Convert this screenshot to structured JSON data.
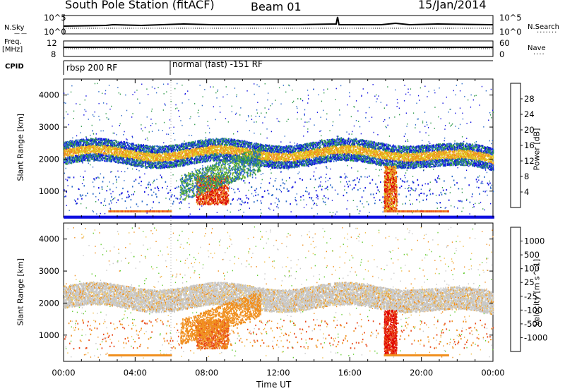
{
  "header": {
    "station": "South Pole Station (fitACF)",
    "beam": "Beam 01",
    "date": "15/Jan/2014"
  },
  "strips": {
    "nsky_label": "N.Sky",
    "nsearch_label": "N.Search",
    "freq_label": "Freq.",
    "freq_unit": "[MHz]",
    "nave_label": "Nave",
    "cpid_label": "CPID",
    "noise_axis": [
      "10^5",
      "10^0"
    ],
    "freq_axis": [
      "12",
      "8"
    ],
    "nave_axis": [
      "60",
      "0"
    ],
    "cpid_modes": [
      {
        "label": "rbsp 200 RF",
        "start_hour": 0
      },
      {
        "label": "normal (fast) -151 RF",
        "start_hour": 6
      }
    ]
  },
  "chart_data": [
    {
      "type": "heatmap",
      "title": "",
      "xlabel": "",
      "ylabel": "Slant Range [km]",
      "xlim": [
        0,
        24
      ],
      "ylim": [
        180,
        4500
      ],
      "yticks": [
        1000,
        2000,
        3000,
        4000
      ],
      "colorbar": {
        "label": "Power [dB]",
        "ticks": [
          "28",
          "24",
          "20",
          "16",
          "12",
          "8",
          "4"
        ],
        "colors": [
          "#1010e0",
          "#2868c8",
          "#2e9a4a",
          "#7ab830",
          "#e0cc20",
          "#f09020",
          "#e84818",
          "#d80000"
        ]
      },
      "regions": [
        {
          "x": [
            0.0,
            24.0
          ],
          "y": [
            1800,
            2500
          ],
          "level": "16-24 dB"
        },
        {
          "x": [
            0.0,
            24.0
          ],
          "y": [
            1450,
            1800
          ],
          "level": "4-12 dB"
        },
        {
          "x": [
            7.5,
            8.8
          ],
          "y": [
            600,
            1300
          ],
          "level": "24-28 dB"
        },
        {
          "x": [
            17.9,
            18.5
          ],
          "y": [
            400,
            1800
          ],
          "level": "16-28 dB"
        },
        {
          "x": [
            2.5,
            6.0
          ],
          "y": [
            350,
            450
          ],
          "level": "16-24 dB"
        }
      ]
    },
    {
      "type": "heatmap",
      "title": "",
      "xlabel": "Time UT",
      "ylabel": "Slant Range [km]",
      "xlim": [
        0,
        24
      ],
      "ylim": [
        180,
        4500
      ],
      "yticks": [
        1000,
        2000,
        3000,
        4000
      ],
      "xticks": [
        "00:00",
        "04:00",
        "08:00",
        "12:00",
        "16:00",
        "20:00",
        "00:00"
      ],
      "colorbar": {
        "label": "Velocity [m s^-1]",
        "ticks": [
          "1000",
          "500",
          "100",
          "25",
          "-25",
          "-100",
          "-500",
          "-1000"
        ],
        "colors": [
          "#2a3ea8",
          "#2e7a9a",
          "#3aa060",
          "#66cc33",
          "#c8c8c8",
          "#f0c050",
          "#f09020",
          "#e84818",
          "#e00000"
        ]
      },
      "regions": [
        {
          "x": [
            0.0,
            24.0
          ],
          "y": [
            1500,
            2500
          ],
          "level": "-25 to 25 m/s"
        },
        {
          "x": [
            6.5,
            11.0
          ],
          "y": [
            500,
            1500
          ],
          "level": "-100 to -500 m/s"
        },
        {
          "x": [
            17.9,
            18.5
          ],
          "y": [
            400,
            1800
          ],
          "level": "-500 to -1000 m/s"
        },
        {
          "x": [
            2.5,
            6.0
          ],
          "y": [
            350,
            450
          ],
          "level": "-100 to -500 m/s"
        }
      ]
    }
  ]
}
